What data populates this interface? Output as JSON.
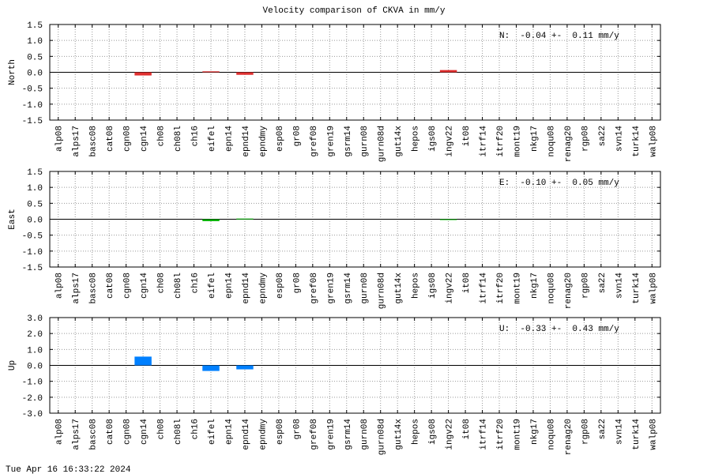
{
  "title": "Velocity comparison of CKVA in mm/y",
  "footer": "Tue Apr 16 16:33:22 2024",
  "chart_data": [
    {
      "type": "bar",
      "ylabel": "North",
      "annotation": "N:  -0.04 +-  0.11 mm/y",
      "color": "#e03030",
      "grid": true,
      "categories": [
        "alp08",
        "alps17",
        "basc08",
        "cat08",
        "cgn08",
        "cgn14",
        "ch08",
        "ch08l",
        "ch16",
        "eifel",
        "epn14",
        "epnd14",
        "epndmy",
        "esp08",
        "gr08",
        "gref08",
        "gren19",
        "gsrm14",
        "gurn08",
        "gurn08d",
        "gut14x",
        "hepos",
        "igs08",
        "ingv22",
        "it08",
        "itrf14",
        "itrf20",
        "mont19",
        "nkg17",
        "noqu08",
        "renag20",
        "rgp08",
        "sa22",
        "svn14",
        "turk14",
        "walp08"
      ],
      "values": [
        null,
        null,
        null,
        null,
        null,
        -0.1,
        null,
        null,
        null,
        0.03,
        null,
        -0.08,
        null,
        null,
        null,
        null,
        null,
        null,
        null,
        null,
        null,
        null,
        null,
        0.07,
        null,
        null,
        null,
        null,
        null,
        null,
        null,
        null,
        null,
        null,
        null,
        null
      ],
      "ylim": [
        -1.5,
        1.5
      ],
      "yticks": [
        1.5,
        {
          "value": 1,
          "label": "1.0"
        },
        0.5,
        {
          "value": 0,
          "label": "0.0"
        },
        -0.5,
        {
          "value": -1,
          "label": "-1.0"
        },
        -1.5
      ]
    },
    {
      "type": "bar",
      "ylabel": "East",
      "annotation": "E:  -0.10 +-  0.05 mm/y",
      "color": "#00b000",
      "grid": true,
      "categories": [
        "alp08",
        "alps17",
        "basc08",
        "cat08",
        "cgn08",
        "cgn14",
        "ch08",
        "ch08l",
        "ch16",
        "eifel",
        "epn14",
        "epnd14",
        "epndmy",
        "esp08",
        "gr08",
        "gref08",
        "gren19",
        "gsrm14",
        "gurn08",
        "gurn08d",
        "gut14x",
        "hepos",
        "igs08",
        "ingv22",
        "it08",
        "itrf14",
        "itrf20",
        "mont19",
        "nkg17",
        "noqu08",
        "renag20",
        "rgp08",
        "sa22",
        "svn14",
        "turk14",
        "walp08"
      ],
      "values": [
        null,
        null,
        null,
        null,
        null,
        null,
        null,
        null,
        null,
        -0.06,
        null,
        0.02,
        null,
        null,
        null,
        null,
        null,
        null,
        null,
        null,
        null,
        null,
        null,
        -0.02,
        null,
        null,
        null,
        null,
        null,
        null,
        null,
        null,
        null,
        null,
        null,
        null
      ],
      "ylim": [
        -1.5,
        1.5
      ],
      "yticks": [
        1.5,
        {
          "value": 1,
          "label": "1.0"
        },
        0.5,
        {
          "value": 0,
          "label": "0.0"
        },
        -0.5,
        {
          "value": -1,
          "label": "-1.0"
        },
        -1.5
      ]
    },
    {
      "type": "bar",
      "ylabel": "Up",
      "annotation": "U:  -0.33 +-  0.43 mm/y",
      "color": "#0080ff",
      "grid": true,
      "categories": [
        "alp08",
        "alps17",
        "basc08",
        "cat08",
        "cgn08",
        "cgn14",
        "ch08",
        "ch08l",
        "ch16",
        "eifel",
        "epn14",
        "epnd14",
        "epndmy",
        "esp08",
        "gr08",
        "gref08",
        "gren19",
        "gsrm14",
        "gurn08",
        "gurn08d",
        "gut14x",
        "hepos",
        "igs08",
        "ingv22",
        "it08",
        "itrf14",
        "itrf20",
        "mont19",
        "nkg17",
        "noqu08",
        "renag20",
        "rgp08",
        "sa22",
        "svn14",
        "turk14",
        "walp08"
      ],
      "values": [
        null,
        null,
        null,
        null,
        null,
        0.55,
        null,
        null,
        null,
        -0.35,
        null,
        -0.25,
        null,
        null,
        null,
        null,
        null,
        null,
        null,
        null,
        null,
        null,
        null,
        null,
        null,
        null,
        null,
        null,
        null,
        null,
        null,
        null,
        null,
        null,
        null,
        null
      ],
      "ylim": [
        -3,
        3
      ],
      "yticks": [
        {
          "value": 3,
          "label": "3.0"
        },
        {
          "value": 2,
          "label": "2.0"
        },
        {
          "value": 1,
          "label": "1.0"
        },
        {
          "value": 0,
          "label": "0.0"
        },
        {
          "value": -1,
          "label": "-1.0"
        },
        {
          "value": -2,
          "label": "-2.0"
        },
        {
          "value": -3,
          "label": "-3.0"
        }
      ]
    }
  ]
}
